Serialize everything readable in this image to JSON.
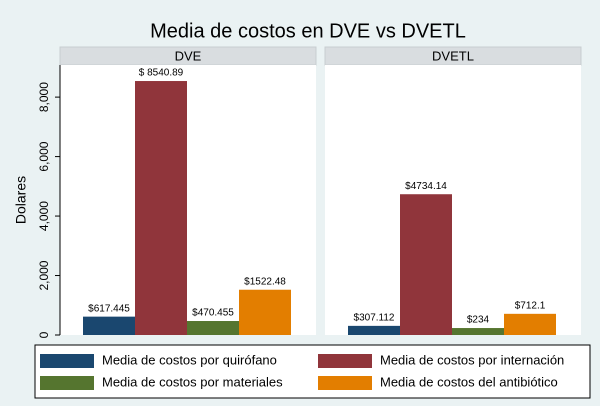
{
  "chart_data": {
    "type": "bar",
    "title": "Media de costos en DVE vs DVETL",
    "ylabel": "Dolares",
    "categories": [
      "DVE",
      "DVETL"
    ],
    "ylim": [
      0,
      9080
    ],
    "yticks": [
      0,
      {
        "value": 2000,
        "label": "2,000"
      },
      {
        "value": 4000,
        "label": "4,000"
      },
      {
        "value": 6000,
        "label": "6,000"
      },
      {
        "value": 8000,
        "label": "8,000"
      }
    ],
    "grid": false,
    "series": [
      {
        "name": "Media de costos por quirófano",
        "color": "#1a476f",
        "values": [
          617.445,
          307.112
        ],
        "value_labels": [
          "$617.445",
          "$307.112"
        ]
      },
      {
        "name": "Media de costos por internación",
        "color": "#90353b",
        "values": [
          8540.89,
          4734.14
        ],
        "value_labels": [
          "$ 8540.89",
          "$4734.14"
        ]
      },
      {
        "name": "Media de costos por materiales",
        "color": "#55752f",
        "values": [
          470.455,
          234
        ],
        "value_labels": [
          "$470.455",
          "$234"
        ]
      },
      {
        "name": "Media de costos del antibiótico",
        "color": "#e37e00",
        "values": [
          1522.48,
          712.1
        ],
        "value_labels": [
          "$1522.48",
          "$712.1"
        ]
      }
    ]
  }
}
